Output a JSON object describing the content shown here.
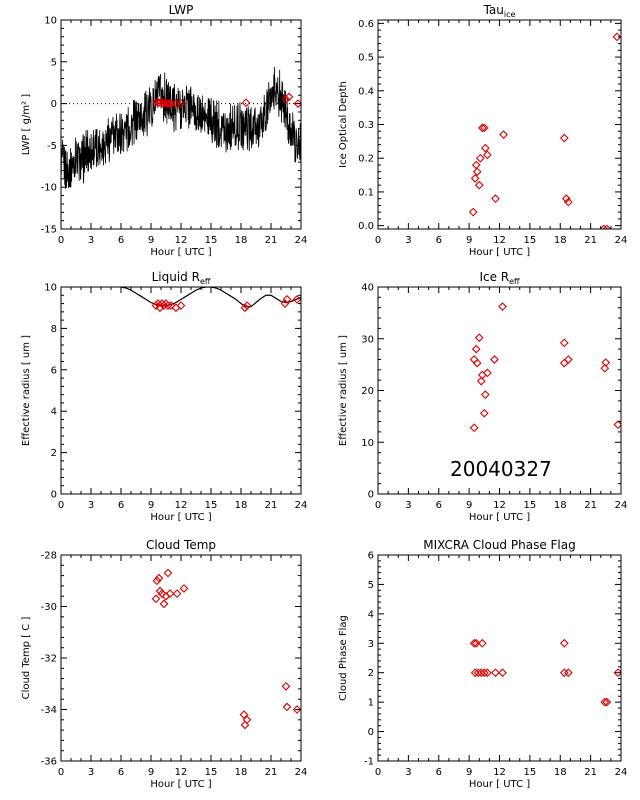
{
  "date_stamp": "20040327",
  "colors": {
    "marker": "#e00000",
    "line": "#000000",
    "axis": "#000000"
  },
  "chart_data": [
    {
      "id": "lwp",
      "type": "line",
      "title": "LWP",
      "xlabel": "Hour [ UTC ]",
      "ylabel": "LWP [ g/m² ]",
      "xlim": [
        0,
        24
      ],
      "ylim": [
        -15,
        10
      ],
      "xticks": [
        0,
        3,
        6,
        9,
        12,
        15,
        18,
        21,
        24
      ],
      "yticks": [
        -15,
        -10,
        -5,
        0,
        5,
        10
      ],
      "ytick_labels": [
        "-15",
        "-10",
        "-5",
        "0",
        "5",
        "10"
      ],
      "reference_line": {
        "y": 0,
        "style": "dotted"
      },
      "line_series": {
        "x": [
          0,
          0.5,
          1,
          1.5,
          2,
          2.5,
          3,
          3.5,
          4,
          4.5,
          5,
          5.5,
          6,
          6.5,
          7,
          7.5,
          8,
          8.5,
          9,
          9.5,
          10,
          10.5,
          11,
          11.5,
          12,
          12.5,
          13,
          13.5,
          14,
          14.5,
          15,
          15.5,
          16,
          16.5,
          17,
          17.5,
          18,
          18.5,
          19,
          19.5,
          20,
          20.5,
          21,
          21.5,
          22,
          22.5,
          23,
          23.5,
          24
        ],
        "y": [
          -7,
          -8,
          -7.5,
          -6.5,
          -7,
          -6,
          -5.5,
          -5.5,
          -5,
          -4.5,
          -4,
          -4,
          -3.5,
          -3,
          -2.5,
          -2,
          -1.5,
          -1,
          -0.5,
          0.5,
          1,
          0.5,
          0,
          -0.5,
          -0.5,
          0,
          -0.5,
          -1,
          -1.5,
          -2,
          -2,
          -2.5,
          -2.5,
          -3,
          -3,
          -3,
          -2.5,
          -2.5,
          -3,
          -3,
          -2.5,
          -1.5,
          1,
          2,
          0.5,
          -1,
          -3.5,
          -4.5,
          -5
        ]
      },
      "marker_points": [
        {
          "x": 9.6,
          "y": 0.2
        },
        {
          "x": 9.8,
          "y": 0.1
        },
        {
          "x": 10.0,
          "y": 0.2
        },
        {
          "x": 10.2,
          "y": 0.0
        },
        {
          "x": 10.4,
          "y": 0.1
        },
        {
          "x": 10.6,
          "y": 0.0
        },
        {
          "x": 10.8,
          "y": 0.0
        },
        {
          "x": 11.0,
          "y": 0.0
        },
        {
          "x": 11.5,
          "y": 0.0
        },
        {
          "x": 12.0,
          "y": 0.0
        },
        {
          "x": 18.5,
          "y": 0.1
        },
        {
          "x": 22.5,
          "y": 0.5
        },
        {
          "x": 22.8,
          "y": 0.8
        },
        {
          "x": 23.7,
          "y": 0.0
        }
      ]
    },
    {
      "id": "tau_ice",
      "type": "scatter",
      "title": "Tau",
      "title_sub": "ice",
      "xlabel": "Hour [ UTC ]",
      "ylabel": "Ice Optical Depth",
      "xlim": [
        0,
        24
      ],
      "ylim": [
        -0.01,
        0.61
      ],
      "xticks": [
        0,
        3,
        6,
        9,
        12,
        15,
        18,
        21,
        24
      ],
      "yticks": [
        0.0,
        0.1,
        0.2,
        0.3,
        0.4,
        0.5,
        0.6
      ],
      "ytick_labels": [
        "0.0",
        "0.1",
        "0.2",
        "0.3",
        "0.4",
        "0.5",
        "0.6"
      ],
      "points": [
        {
          "x": 9.4,
          "y": 0.04
        },
        {
          "x": 9.6,
          "y": 0.14
        },
        {
          "x": 9.7,
          "y": 0.18
        },
        {
          "x": 9.8,
          "y": 0.16
        },
        {
          "x": 10.0,
          "y": 0.12
        },
        {
          "x": 10.1,
          "y": 0.2
        },
        {
          "x": 10.3,
          "y": 0.29
        },
        {
          "x": 10.5,
          "y": 0.29
        },
        {
          "x": 10.6,
          "y": 0.23
        },
        {
          "x": 10.8,
          "y": 0.21
        },
        {
          "x": 11.6,
          "y": 0.08
        },
        {
          "x": 12.4,
          "y": 0.27
        },
        {
          "x": 18.4,
          "y": 0.26
        },
        {
          "x": 18.6,
          "y": 0.08
        },
        {
          "x": 18.8,
          "y": 0.07
        },
        {
          "x": 22.3,
          "y": -0.01
        },
        {
          "x": 22.6,
          "y": -0.01
        },
        {
          "x": 23.6,
          "y": 0.56
        }
      ]
    },
    {
      "id": "liquid_reff",
      "type": "scatter",
      "title": "Liquid R",
      "title_sub": "eff",
      "xlabel": "Hour [ UTC ]",
      "ylabel": "Effective radius [ um ]",
      "xlim": [
        0,
        24
      ],
      "ylim": [
        0,
        10
      ],
      "xticks": [
        0,
        3,
        6,
        9,
        12,
        15,
        18,
        21,
        24
      ],
      "yticks": [
        0,
        2,
        4,
        6,
        8,
        10
      ],
      "ytick_labels": [
        "0",
        "2",
        "4",
        "6",
        "8",
        "10"
      ],
      "line_series": {
        "x": [
          6,
          6.5,
          7,
          7.5,
          8,
          8.5,
          9,
          9.5,
          10,
          10.5,
          11,
          11.5,
          12,
          12.5,
          13,
          13.5,
          14,
          14.5,
          15,
          15.5,
          16,
          16.5,
          17,
          17.5,
          18,
          18.5,
          19,
          19.5,
          20,
          20.5,
          21,
          21.5,
          22,
          22.5,
          23,
          23.5,
          24
        ],
        "y": [
          10,
          9.95,
          9.85,
          9.7,
          9.55,
          9.4,
          9.25,
          9.15,
          9.1,
          9.1,
          9.15,
          9.25,
          9.4,
          9.55,
          9.7,
          9.85,
          9.95,
          10,
          10,
          9.95,
          9.85,
          9.7,
          9.55,
          9.4,
          9.2,
          9.05,
          9.05,
          9.25,
          9.45,
          9.6,
          9.6,
          9.45,
          9.3,
          9.25,
          9.3,
          9.4,
          9.5
        ]
      },
      "points": [
        {
          "x": 9.5,
          "y": 9.1
        },
        {
          "x": 9.7,
          "y": 9.2
        },
        {
          "x": 9.9,
          "y": 9.0
        },
        {
          "x": 10.1,
          "y": 9.2
        },
        {
          "x": 10.3,
          "y": 9.1
        },
        {
          "x": 10.5,
          "y": 9.2
        },
        {
          "x": 10.7,
          "y": 9.1
        },
        {
          "x": 11.0,
          "y": 9.1
        },
        {
          "x": 11.5,
          "y": 9.0
        },
        {
          "x": 12.0,
          "y": 9.1
        },
        {
          "x": 18.4,
          "y": 9.0
        },
        {
          "x": 18.6,
          "y": 9.1
        },
        {
          "x": 22.4,
          "y": 9.2
        },
        {
          "x": 22.6,
          "y": 9.4
        },
        {
          "x": 23.6,
          "y": 9.4
        }
      ]
    },
    {
      "id": "ice_reff",
      "type": "scatter",
      "title": "Ice R",
      "title_sub": "eff",
      "xlabel": "Hour [ UTC ]",
      "ylabel": "Effective radius [ um ]",
      "xlim": [
        0,
        24
      ],
      "ylim": [
        0,
        40
      ],
      "xticks": [
        0,
        3,
        6,
        9,
        12,
        15,
        18,
        21,
        24
      ],
      "yticks": [
        0,
        10,
        20,
        30,
        40
      ],
      "ytick_labels": [
        "0",
        "10",
        "20",
        "30",
        "40"
      ],
      "points": [
        {
          "x": 9.5,
          "y": 12.8
        },
        {
          "x": 9.5,
          "y": 26
        },
        {
          "x": 9.7,
          "y": 28
        },
        {
          "x": 9.8,
          "y": 25.3
        },
        {
          "x": 10.0,
          "y": 30.2
        },
        {
          "x": 10.2,
          "y": 21.8
        },
        {
          "x": 10.3,
          "y": 23
        },
        {
          "x": 10.5,
          "y": 15.6
        },
        {
          "x": 10.6,
          "y": 19.2
        },
        {
          "x": 10.8,
          "y": 23.4
        },
        {
          "x": 11.5,
          "y": 26
        },
        {
          "x": 12.3,
          "y": 36.2
        },
        {
          "x": 18.4,
          "y": 29.2
        },
        {
          "x": 18.4,
          "y": 25.3
        },
        {
          "x": 18.8,
          "y": 26
        },
        {
          "x": 22.4,
          "y": 24.3
        },
        {
          "x": 22.5,
          "y": 25.4
        },
        {
          "x": 23.7,
          "y": 13.4
        }
      ]
    },
    {
      "id": "cloud_temp",
      "type": "scatter",
      "title": "Cloud Temp",
      "xlabel": "Hour [ UTC ]",
      "ylabel": "Cloud Temp [ C ]",
      "xlim": [
        0,
        24
      ],
      "ylim": [
        -36,
        -28
      ],
      "xticks": [
        0,
        3,
        6,
        9,
        12,
        15,
        18,
        21,
        24
      ],
      "yticks": [
        -36,
        -34,
        -32,
        -30,
        -28
      ],
      "ytick_labels": [
        "-36",
        "-34",
        "-32",
        "-30",
        "-28"
      ],
      "points": [
        {
          "x": 9.5,
          "y": -29.7
        },
        {
          "x": 9.6,
          "y": -29.0
        },
        {
          "x": 9.8,
          "y": -28.9
        },
        {
          "x": 9.9,
          "y": -29.4
        },
        {
          "x": 10.1,
          "y": -29.5
        },
        {
          "x": 10.3,
          "y": -29.9
        },
        {
          "x": 10.5,
          "y": -29.6
        },
        {
          "x": 10.7,
          "y": -28.7
        },
        {
          "x": 10.9,
          "y": -29.5
        },
        {
          "x": 11.6,
          "y": -29.5
        },
        {
          "x": 12.3,
          "y": -29.3
        },
        {
          "x": 18.3,
          "y": -34.2
        },
        {
          "x": 18.4,
          "y": -34.6
        },
        {
          "x": 18.6,
          "y": -34.4
        },
        {
          "x": 22.5,
          "y": -33.1
        },
        {
          "x": 22.6,
          "y": -33.9
        },
        {
          "x": 23.6,
          "y": -34.0
        }
      ]
    },
    {
      "id": "phase_flag",
      "type": "scatter",
      "title": "MIXCRA Cloud Phase Flag",
      "xlabel": "Hour [ UTC ]",
      "ylabel": "Cloud Phase Flag",
      "xlim": [
        0,
        24
      ],
      "ylim": [
        -1,
        6
      ],
      "xticks": [
        0,
        3,
        6,
        9,
        12,
        15,
        18,
        21,
        24
      ],
      "yticks": [
        -1,
        0,
        1,
        2,
        3,
        4,
        5,
        6
      ],
      "ytick_labels": [
        "-1",
        "0",
        "1",
        "2",
        "3",
        "4",
        "5",
        "6"
      ],
      "points": [
        {
          "x": 9.5,
          "y": 3
        },
        {
          "x": 9.7,
          "y": 3
        },
        {
          "x": 10.3,
          "y": 3
        },
        {
          "x": 9.6,
          "y": 2
        },
        {
          "x": 9.9,
          "y": 2
        },
        {
          "x": 10.2,
          "y": 2
        },
        {
          "x": 10.5,
          "y": 2
        },
        {
          "x": 10.8,
          "y": 2
        },
        {
          "x": 11.6,
          "y": 2
        },
        {
          "x": 12.3,
          "y": 2
        },
        {
          "x": 18.4,
          "y": 3
        },
        {
          "x": 18.4,
          "y": 2
        },
        {
          "x": 18.8,
          "y": 2
        },
        {
          "x": 22.4,
          "y": 1
        },
        {
          "x": 22.6,
          "y": 1
        },
        {
          "x": 23.7,
          "y": 2
        }
      ]
    }
  ]
}
